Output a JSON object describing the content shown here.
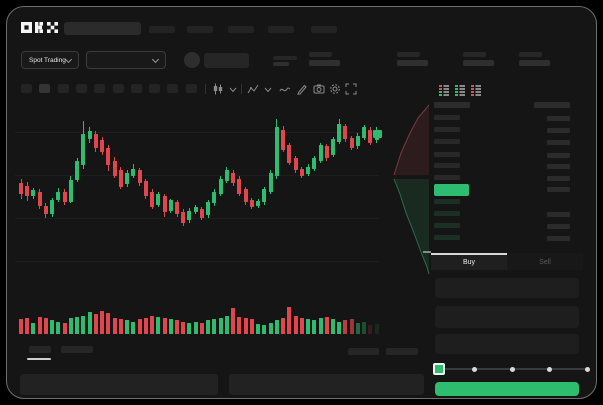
{
  "app": {
    "name": "OKX",
    "logo_text": "OKX"
  },
  "colors": {
    "up_green": "#2ebd70",
    "down_red": "#e0464e",
    "bid_row_green": "#1c2f24",
    "last_price_bg": "#2ebd70",
    "buy_button_green": "#2ebd6e"
  },
  "header": {
    "nav_item_count": 5
  },
  "market_bar": {
    "selector_label": "Spot Trading",
    "stat_group_count": 4
  },
  "chart_toolbar": {
    "timeframe_count": 10,
    "active_timeframe_index": 1,
    "icons": [
      "candle-type",
      "chevron-down",
      "indicators",
      "chevron-down",
      "line-tool",
      "draw-tool",
      "camera",
      "settings",
      "fullscreen"
    ]
  },
  "chart_data": {
    "type": "candlestick",
    "title": "",
    "note": "Skeleton trading UI: no axis tick labels are rendered; prices are relative units 0-100 estimated from pixels",
    "price_scale": [
      0,
      100
    ],
    "up_color": "#2ebd70",
    "down_color": "#e0464e",
    "overlays": [
      "order-book depth profile at right edge: red ask wedge above, green bid wedge below, meeting at last price"
    ],
    "candles": [
      {
        "o": 46,
        "h": 50,
        "l": 33,
        "c": 37
      },
      {
        "o": 44,
        "h": 47,
        "l": 31,
        "c": 35
      },
      {
        "o": 35,
        "h": 42,
        "l": 33,
        "c": 40
      },
      {
        "o": 39,
        "h": 41,
        "l": 24,
        "c": 27
      },
      {
        "o": 27,
        "h": 29,
        "l": 17,
        "c": 20
      },
      {
        "o": 20,
        "h": 34,
        "l": 18,
        "c": 32
      },
      {
        "o": 32,
        "h": 42,
        "l": 30,
        "c": 39
      },
      {
        "o": 39,
        "h": 41,
        "l": 28,
        "c": 30
      },
      {
        "o": 30,
        "h": 52,
        "l": 29,
        "c": 49
      },
      {
        "o": 49,
        "h": 67,
        "l": 47,
        "c": 65
      },
      {
        "o": 61,
        "h": 98,
        "l": 58,
        "c": 87
      },
      {
        "o": 83,
        "h": 93,
        "l": 80,
        "c": 90
      },
      {
        "o": 87,
        "h": 90,
        "l": 72,
        "c": 76
      },
      {
        "o": 82,
        "h": 85,
        "l": 70,
        "c": 72
      },
      {
        "o": 76,
        "h": 78,
        "l": 56,
        "c": 61
      },
      {
        "o": 65,
        "h": 68,
        "l": 50,
        "c": 52
      },
      {
        "o": 57,
        "h": 60,
        "l": 41,
        "c": 43
      },
      {
        "o": 45,
        "h": 57,
        "l": 43,
        "c": 55
      },
      {
        "o": 52,
        "h": 62,
        "l": 50,
        "c": 58
      },
      {
        "o": 57,
        "h": 59,
        "l": 44,
        "c": 46
      },
      {
        "o": 48,
        "h": 50,
        "l": 33,
        "c": 35
      },
      {
        "o": 39,
        "h": 41,
        "l": 24,
        "c": 26
      },
      {
        "o": 28,
        "h": 39,
        "l": 26,
        "c": 37
      },
      {
        "o": 35,
        "h": 37,
        "l": 18,
        "c": 22
      },
      {
        "o": 23,
        "h": 33,
        "l": 21,
        "c": 32
      },
      {
        "o": 30,
        "h": 32,
        "l": 18,
        "c": 20
      },
      {
        "o": 22,
        "h": 24,
        "l": 10,
        "c": 13
      },
      {
        "o": 15,
        "h": 25,
        "l": 13,
        "c": 23
      },
      {
        "o": 22,
        "h": 28,
        "l": 20,
        "c": 26
      },
      {
        "o": 24,
        "h": 26,
        "l": 15,
        "c": 17
      },
      {
        "o": 19,
        "h": 32,
        "l": 17,
        "c": 30
      },
      {
        "o": 29,
        "h": 41,
        "l": 27,
        "c": 39
      },
      {
        "o": 37,
        "h": 52,
        "l": 35,
        "c": 50
      },
      {
        "o": 48,
        "h": 60,
        "l": 46,
        "c": 57
      },
      {
        "o": 55,
        "h": 57,
        "l": 44,
        "c": 46
      },
      {
        "o": 50,
        "h": 52,
        "l": 35,
        "c": 37
      },
      {
        "o": 41,
        "h": 43,
        "l": 28,
        "c": 30
      },
      {
        "o": 32,
        "h": 34,
        "l": 24,
        "c": 26
      },
      {
        "o": 27,
        "h": 33,
        "l": 25,
        "c": 31
      },
      {
        "o": 30,
        "h": 43,
        "l": 28,
        "c": 41
      },
      {
        "o": 39,
        "h": 57,
        "l": 37,
        "c": 55
      },
      {
        "o": 52,
        "h": 100,
        "l": 50,
        "c": 93
      },
      {
        "o": 91,
        "h": 94,
        "l": 72,
        "c": 74
      },
      {
        "o": 78,
        "h": 80,
        "l": 61,
        "c": 63
      },
      {
        "o": 67,
        "h": 69,
        "l": 55,
        "c": 57
      },
      {
        "o": 58,
        "h": 60,
        "l": 50,
        "c": 52
      },
      {
        "o": 54,
        "h": 62,
        "l": 52,
        "c": 60
      },
      {
        "o": 58,
        "h": 69,
        "l": 56,
        "c": 67
      },
      {
        "o": 65,
        "h": 80,
        "l": 63,
        "c": 78
      },
      {
        "o": 77,
        "h": 79,
        "l": 65,
        "c": 67
      },
      {
        "o": 70,
        "h": 85,
        "l": 68,
        "c": 83
      },
      {
        "o": 81,
        "h": 100,
        "l": 79,
        "c": 96
      },
      {
        "o": 94,
        "h": 96,
        "l": 81,
        "c": 83
      },
      {
        "o": 84,
        "h": 86,
        "l": 74,
        "c": 76
      },
      {
        "o": 77,
        "h": 88,
        "l": 75,
        "c": 86
      },
      {
        "o": 84,
        "h": 95,
        "l": 82,
        "c": 93
      },
      {
        "o": 91,
        "h": 93,
        "l": 78,
        "c": 80
      },
      {
        "o": 82,
        "h": 93,
        "l": 80,
        "c": 91
      }
    ],
    "volume": [
      0.45,
      0.5,
      0.3,
      0.55,
      0.5,
      0.4,
      0.35,
      0.3,
      0.5,
      0.55,
      0.6,
      0.75,
      0.65,
      0.8,
      0.7,
      0.5,
      0.45,
      0.4,
      0.35,
      0.45,
      0.5,
      0.6,
      0.55,
      0.5,
      0.45,
      0.4,
      0.35,
      0.3,
      0.35,
      0.3,
      0.4,
      0.45,
      0.5,
      0.6,
      0.9,
      0.55,
      0.5,
      0.45,
      0.25,
      0.2,
      0.3,
      0.4,
      0.5,
      0.95,
      0.6,
      0.5,
      0.45,
      0.4,
      0.5,
      0.55,
      0.45,
      0.35,
      0.4,
      0.45,
      0.3,
      0.35,
      0.2,
      0.25
    ]
  },
  "orderbook": {
    "view_mode_icons": [
      "book-combined",
      "book-bids-only",
      "book-asks-only"
    ],
    "ask_row_count": 6,
    "bid_row_count": 4
  },
  "trade_panel": {
    "tabs": [
      {
        "label": "Buy",
        "active": true
      },
      {
        "label": "Sell",
        "active": false
      }
    ],
    "field_count": 3,
    "slider": {
      "stops": 5,
      "value_index": 0
    }
  },
  "bottom_bar": {
    "tab_count": 2,
    "active_tab_index": 0,
    "right_chip_count": 2,
    "panel_count": 2
  }
}
